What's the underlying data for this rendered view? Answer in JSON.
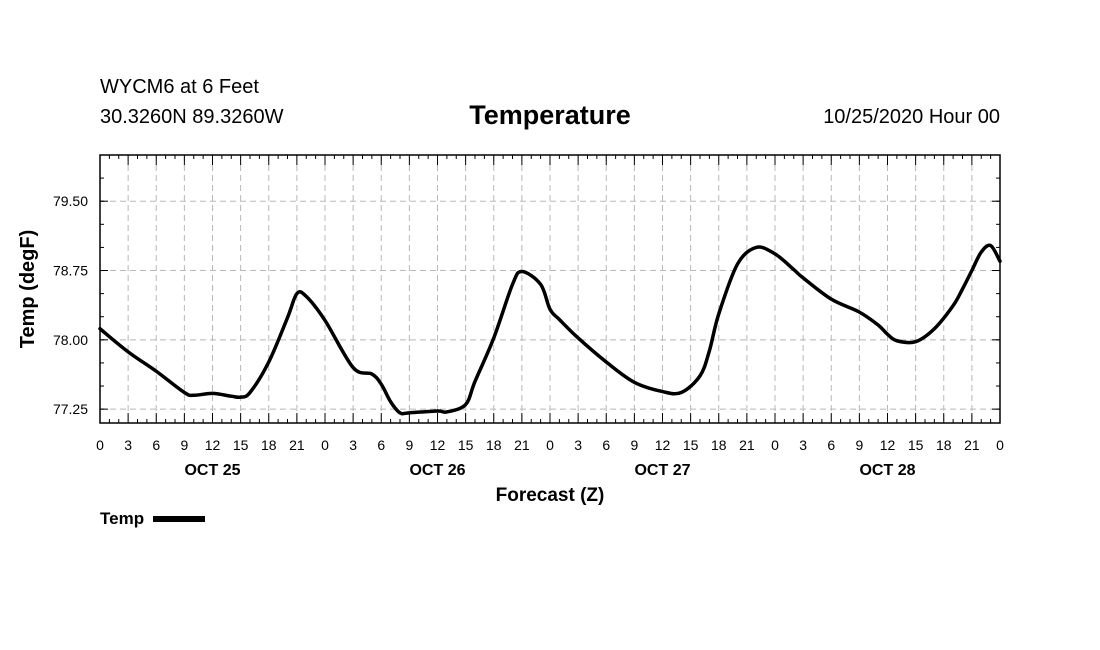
{
  "header": {
    "station": "WYCM6 at 6 Feet",
    "coords": "30.3260N 89.3260W",
    "title": "Temperature",
    "date": "10/25/2020 Hour 00"
  },
  "legend": {
    "label": "Temp"
  },
  "chart_data": {
    "type": "line",
    "title": "Temperature",
    "xlabel": "Forecast (Z)",
    "ylabel": "Temp (degF)",
    "xlim": [
      0,
      96
    ],
    "ylim": [
      77.1,
      80.0
    ],
    "yticks": [
      77.25,
      78.0,
      78.75,
      79.5
    ],
    "ytick_labels": [
      "77.25",
      "78.00",
      "78.75",
      "79.50"
    ],
    "xticks": [
      0,
      3,
      6,
      9,
      12,
      15,
      18,
      21,
      24,
      27,
      30,
      33,
      36,
      39,
      42,
      45,
      48,
      51,
      54,
      57,
      60,
      63,
      66,
      69,
      72,
      75,
      78,
      81,
      84,
      87,
      90,
      93,
      96
    ],
    "xtick_labels": [
      "0",
      "3",
      "6",
      "9",
      "12",
      "15",
      "18",
      "21",
      "0",
      "3",
      "6",
      "9",
      "12",
      "15",
      "18",
      "21",
      "0",
      "3",
      "6",
      "9",
      "12",
      "15",
      "18",
      "21",
      "0",
      "3",
      "6",
      "9",
      "12",
      "15",
      "18",
      "21",
      "0"
    ],
    "day_labels": [
      {
        "x": 12,
        "label": "OCT 25"
      },
      {
        "x": 36,
        "label": "OCT 26"
      },
      {
        "x": 60,
        "label": "OCT 27"
      },
      {
        "x": 84,
        "label": "OCT 28"
      }
    ],
    "grid": true,
    "series": [
      {
        "name": "Temp",
        "x": [
          0,
          3,
          6,
          9,
          10,
          12,
          14,
          15,
          16,
          18,
          20,
          21,
          22,
          24,
          27,
          29,
          30,
          31,
          32,
          33,
          36,
          37,
          39,
          40,
          42,
          44,
          45,
          47,
          48,
          49,
          51,
          54,
          57,
          60,
          62,
          64,
          65,
          66,
          68,
          70,
          72,
          74,
          75,
          78,
          81,
          83,
          84,
          85,
          87,
          89,
          91,
          92,
          93,
          94,
          95,
          96
        ],
        "values": [
          78.12,
          77.87,
          77.66,
          77.43,
          77.4,
          77.42,
          77.39,
          77.38,
          77.43,
          77.76,
          78.24,
          78.5,
          78.47,
          78.21,
          77.7,
          77.63,
          77.52,
          77.33,
          77.21,
          77.21,
          77.23,
          77.22,
          77.3,
          77.55,
          78.02,
          78.6,
          78.74,
          78.6,
          78.33,
          78.22,
          78.02,
          77.76,
          77.54,
          77.44,
          77.43,
          77.61,
          77.88,
          78.28,
          78.82,
          79.0,
          78.93,
          78.76,
          78.67,
          78.44,
          78.3,
          78.16,
          78.06,
          77.99,
          77.98,
          78.12,
          78.37,
          78.55,
          78.75,
          78.95,
          79.02,
          78.85
        ]
      }
    ]
  }
}
